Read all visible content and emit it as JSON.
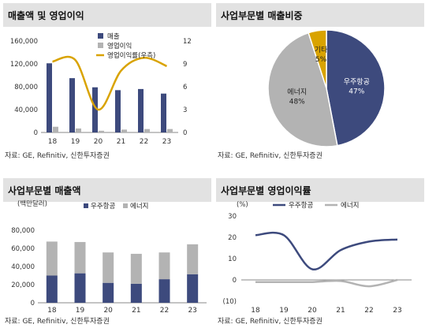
{
  "colors": {
    "navy": "#3d4a7d",
    "gray": "#b3b3b3",
    "gold": "#d9a300",
    "title_bg": "#e2e2e2"
  },
  "charts": [
    {
      "title": "매출액 및 영업이익",
      "source": "자료: GE, Refinitiv, 신한투자증권",
      "chart_data": {
        "type": "bar+line",
        "categories": [
          "18",
          "19",
          "20",
          "21",
          "22",
          "23"
        ],
        "left_axis": {
          "ylim": [
            0,
            160000
          ],
          "ticks": [
            "0",
            "40,000",
            "80,000",
            "120,000",
            "160,000"
          ]
        },
        "right_axis": {
          "ylim": [
            0,
            12
          ],
          "ticks": [
            "0",
            "3",
            "6",
            "9",
            "12"
          ]
        },
        "series": [
          {
            "name": "매출",
            "type": "bar",
            "axis": "left",
            "color": "#3d4a7d",
            "values": [
              121000,
              95000,
              79000,
              74000,
              76000,
              68000
            ]
          },
          {
            "name": "영업이익",
            "type": "bar",
            "axis": "left",
            "color": "#b3b3b3",
            "values": [
              10000,
              7000,
              3000,
              5000,
              6000,
              6000
            ]
          },
          {
            "name": "영업이익률(우측)",
            "type": "line",
            "axis": "right",
            "color": "#d9a300",
            "values": [
              9.3,
              9.5,
              3.0,
              8.1,
              9.8,
              8.7
            ]
          }
        ],
        "legend_position": "top-left"
      }
    },
    {
      "title": "사업부문별 매출비중",
      "source": "자료: GE, Refinitiv, 신한투자증권",
      "chart_data": {
        "type": "pie",
        "slices": [
          {
            "label": "우주항공",
            "pct_label": "47%",
            "value": 47,
            "color": "#3d4a7d"
          },
          {
            "label": "에너지",
            "pct_label": "48%",
            "value": 48,
            "color": "#b3b3b3"
          },
          {
            "label": "기타",
            "pct_label": "5%",
            "value": 5,
            "color": "#d9a300"
          }
        ]
      }
    },
    {
      "title": "사업부문별 매출액",
      "source": "자료: GE, Refinitiv, 신한투자증권",
      "unit": "(백만달러)",
      "chart_data": {
        "type": "stacked-bar",
        "categories": [
          "18",
          "19",
          "20",
          "21",
          "22",
          "23"
        ],
        "ylim": [
          0,
          80000
        ],
        "ticks": [
          "0",
          "20,000",
          "40,000",
          "60,000",
          "80,000"
        ],
        "series": [
          {
            "name": "우주항공",
            "color": "#3d4a7d",
            "values": [
              30000,
              32500,
              22000,
              21000,
              26000,
              31500
            ]
          },
          {
            "name": "에너지",
            "color": "#b3b3b3",
            "values": [
              37500,
              34500,
              33500,
              33000,
              29500,
              33000
            ]
          }
        ],
        "legend_position": "top"
      }
    },
    {
      "title": "사업부문별 영업이익률",
      "source": "자료: GE, Refinitiv, 신한투자증권",
      "unit": "(%)",
      "chart_data": {
        "type": "line",
        "categories": [
          "18",
          "19",
          "20",
          "21",
          "22",
          "23"
        ],
        "ylim": [
          -10,
          30
        ],
        "ticks": [
          "(10)",
          "0",
          "10",
          "20",
          "30"
        ],
        "series": [
          {
            "name": "우주항공",
            "color": "#3d4a7d",
            "values": [
              21,
              21,
              5,
              14,
              18,
              19
            ]
          },
          {
            "name": "에너지",
            "color": "#b3b3b3",
            "values": [
              -1,
              -1,
              -1,
              -0.5,
              -3,
              0
            ]
          }
        ],
        "legend_position": "top"
      }
    }
  ]
}
